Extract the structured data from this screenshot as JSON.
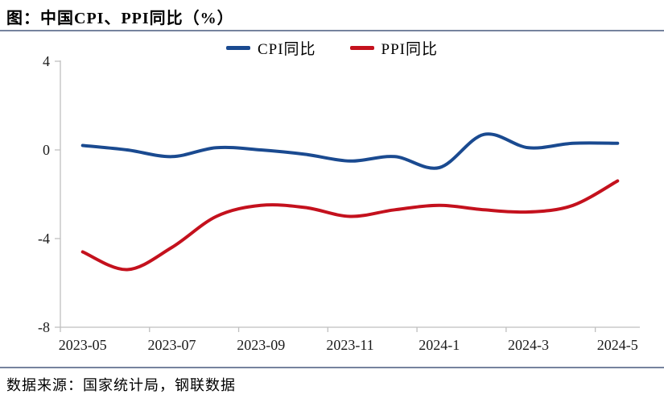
{
  "title": "图：中国CPI、PPI同比（%）",
  "footer": "数据来源：国家统计局，钢联数据",
  "colors": {
    "cpi_line": "#1A4A90",
    "ppi_line": "#C4111D",
    "axis": "#BFBFBF",
    "separator": "#76839E",
    "label_text": "#1A1A1A"
  },
  "legend": [
    {
      "label": "CPI同比",
      "color": "#1A4A90"
    },
    {
      "label": "PPI同比",
      "color": "#C4111D"
    }
  ],
  "chart_data": {
    "type": "line",
    "title": "图：中国CPI、PPI同比（%）",
    "source": "数据来源：国家统计局，钢联数据",
    "x": [
      "2023-05",
      "2023-06",
      "2023-07",
      "2023-08",
      "2023-09",
      "2023-10",
      "2023-11",
      "2023-12",
      "2024-1",
      "2024-2",
      "2024-3",
      "2024-4",
      "2024-5"
    ],
    "series": [
      {
        "name": "CPI同比",
        "color": "#1A4A90",
        "values": [
          0.2,
          0.0,
          -0.3,
          0.1,
          0.0,
          -0.2,
          -0.5,
          -0.3,
          -0.8,
          0.7,
          0.1,
          0.3,
          0.3
        ]
      },
      {
        "name": "PPI同比",
        "color": "#C4111D",
        "values": [
          -4.6,
          -5.4,
          -4.4,
          -3.0,
          -2.5,
          -2.6,
          -3.0,
          -2.7,
          -2.5,
          -2.7,
          -2.8,
          -2.5,
          -1.4
        ]
      }
    ],
    "ylim": [
      -8,
      4
    ],
    "yticks": [
      4,
      0,
      -4,
      -8
    ],
    "xtick_labels": [
      "2023-05",
      "2023-07",
      "2023-09",
      "2023-11",
      "2024-1",
      "2024-3",
      "2024-5"
    ],
    "xtick_every": 2,
    "smooth": true,
    "grid": false,
    "legend_position": "top-center"
  }
}
